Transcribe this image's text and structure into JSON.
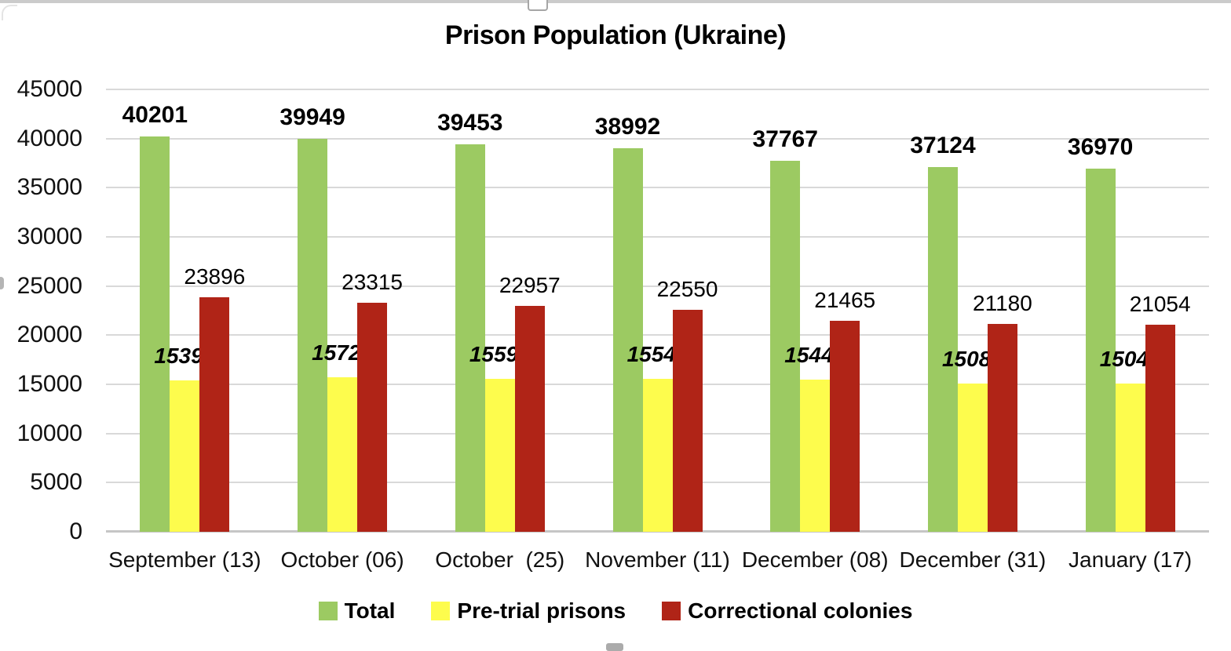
{
  "chart_data": {
    "type": "bar",
    "title": "Prison Population (Ukraine)",
    "categories": [
      "September (13)",
      "October (06)",
      "October  (25)",
      "November (11)",
      "December (08)",
      "December (31)",
      "January (17)"
    ],
    "series": [
      {
        "name": "Total",
        "color": "#9cca62",
        "label_style": "bold",
        "values": [
          40201,
          39949,
          39453,
          38992,
          37767,
          37124,
          36970
        ]
      },
      {
        "name": "Pre-trial prisons",
        "color": "#fdfc4d",
        "label_style": "bold-italic",
        "values": [
          15392,
          15723,
          15597,
          15549,
          15445,
          15087,
          15040
        ]
      },
      {
        "name": "Correctional colonies",
        "color": "#b02417",
        "label_style": "regular",
        "values": [
          23896,
          23315,
          22957,
          22550,
          21465,
          21180,
          21054
        ]
      }
    ],
    "ylim": [
      0,
      45000
    ],
    "ytick_step": 5000,
    "yticks": [
      0,
      5000,
      10000,
      15000,
      20000,
      25000,
      30000,
      35000,
      40000,
      45000
    ],
    "grid": true,
    "grid_color": "#d9d9d9",
    "axis_color": "#c6c6c6",
    "legend_position": "bottom",
    "data_labels": true
  }
}
